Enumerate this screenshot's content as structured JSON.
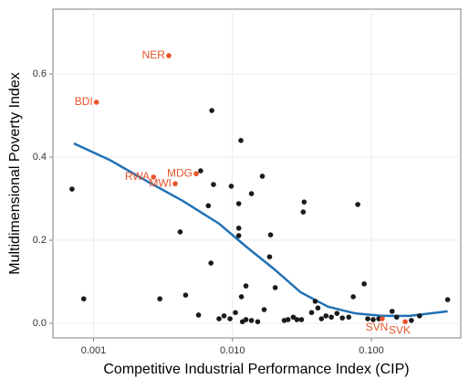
{
  "chart_data": {
    "type": "scatter",
    "xlabel": "Competitive Industrial Performance Index (CIP)",
    "ylabel": "Multidimensional Poverty Index",
    "xscale": "log",
    "xlim": [
      0.00051,
      0.44
    ],
    "ylim": [
      -0.035,
      0.756
    ],
    "xticks": [
      {
        "value": 0.001,
        "label": "0.001"
      },
      {
        "value": 0.01,
        "label": "0.010"
      },
      {
        "value": 0.1,
        "label": "0.100"
      }
    ],
    "yticks": [
      {
        "value": 0,
        "label": "0.0"
      },
      0.2,
      0.4,
      0.6
    ],
    "grid": true,
    "series": [
      {
        "color": "#1a1a1a",
        "x": [
          0.0007,
          0.00085,
          0.003,
          0.0042,
          0.0046,
          0.0059,
          0.0067,
          0.007,
          0.0071,
          0.0073,
          0.0098,
          0.0111,
          0.0111,
          0.0111,
          0.0115,
          0.0125,
          0.0137,
          0.0164,
          0.0185,
          0.0188,
          0.0203,
          0.0323,
          0.0328,
          0.0798,
          0.0887,
          0.0057,
          0.008,
          0.0087,
          0.0096,
          0.0105,
          0.0116,
          0.0118,
          0.0125,
          0.0137,
          0.0152,
          0.0169,
          0.0236,
          0.0251,
          0.0274,
          0.0291,
          0.0314,
          0.0371,
          0.0394,
          0.0412,
          0.0437,
          0.0471,
          0.0515,
          0.0565,
          0.0618,
          0.0687,
          0.074,
          0.0941,
          0.103,
          0.113,
          0.141,
          0.152,
          0.194,
          0.222,
          0.354
        ],
        "y": [
          0.323,
          0.059,
          0.059,
          0.22,
          0.068,
          0.367,
          0.283,
          0.145,
          0.512,
          0.334,
          0.33,
          0.288,
          0.229,
          0.211,
          0.44,
          0.09,
          0.312,
          0.354,
          0.16,
          0.213,
          0.086,
          0.268,
          0.292,
          0.286,
          0.095,
          0.02,
          0.011,
          0.018,
          0.011,
          0.026,
          0.064,
          0.004,
          0.009,
          0.007,
          0.004,
          0.033,
          0.007,
          0.009,
          0.015,
          0.009,
          0.009,
          0.026,
          0.053,
          0.037,
          0.011,
          0.018,
          0.015,
          0.024,
          0.013,
          0.015,
          0.064,
          0.011,
          0.009,
          0.011,
          0.029,
          0.015,
          0.007,
          0.018,
          0.057
        ]
      },
      {
        "color": "#e8542a",
        "x": [
          0.00348,
          0.00105,
          0.0027,
          0.00548,
          0.00387,
          0.1197,
          0.175
        ],
        "y": [
          0.644,
          0.532,
          0.352,
          0.36,
          0.336,
          0.011,
          0.004
        ],
        "point_labels": [
          "NER",
          "BDI",
          "RWA",
          "MDG",
          "MWI",
          "SVN",
          "SVK"
        ]
      }
    ],
    "trend": {
      "color": "#2171b5",
      "x": [
        0.00072,
        0.00131,
        0.00239,
        0.00437,
        0.008,
        0.0125,
        0.0197,
        0.0309,
        0.0487,
        0.0765,
        0.12,
        0.188,
        0.354
      ],
      "y": [
        0.433,
        0.393,
        0.343,
        0.295,
        0.24,
        0.185,
        0.132,
        0.075,
        0.04,
        0.024,
        0.018,
        0.018,
        0.029
      ]
    }
  }
}
